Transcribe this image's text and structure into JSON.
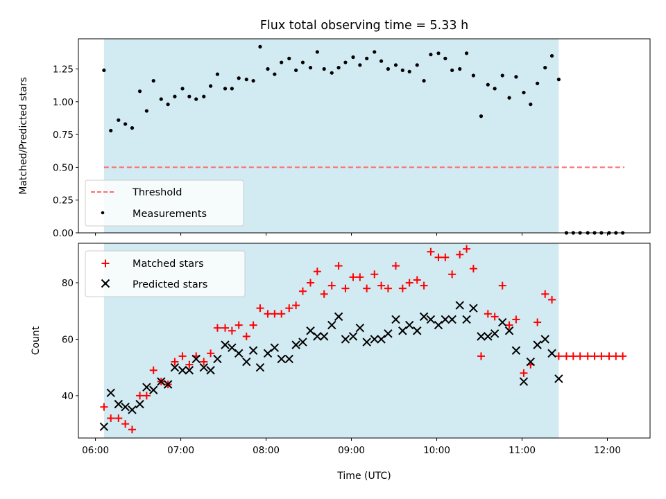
{
  "colors": {
    "observing_band": "#add8e6",
    "threshold": "#ff6b6b",
    "measurements": "#000000",
    "matched": "#ff0000",
    "predicted": "#000000"
  },
  "chart_data": [
    {
      "type": "scatter",
      "panel": "top",
      "title": "Flux total observing time = 5.33 h",
      "xlabel": "",
      "ylabel": "Matched/Predicted stars",
      "xlim_hours": [
        5.8,
        12.5
      ],
      "ylim": [
        0,
        1.48
      ],
      "yticks": [
        0.0,
        0.25,
        0.5,
        0.75,
        1.0,
        1.25
      ],
      "ytick_labels": [
        "0.00",
        "0.25",
        "0.50",
        "0.75",
        "1.00",
        "1.25"
      ],
      "xticks_hours": [
        6,
        7,
        8,
        9,
        10,
        11,
        12
      ],
      "observing_span_hours": [
        6.1,
        11.43
      ],
      "legend": {
        "position": "lower-left",
        "entries": [
          "Threshold",
          "Measurements"
        ]
      },
      "series": [
        {
          "name": "Threshold",
          "style": "dashed-line",
          "x": [
            6.1,
            12.2
          ],
          "y": [
            0.5,
            0.5
          ]
        },
        {
          "name": "Measurements",
          "style": "dot",
          "x": [
            6.1,
            6.18,
            6.27,
            6.35,
            6.43,
            6.52,
            6.6,
            6.68,
            6.77,
            6.85,
            6.93,
            7.02,
            7.1,
            7.18,
            7.27,
            7.35,
            7.43,
            7.52,
            7.6,
            7.68,
            7.77,
            7.85,
            7.93,
            8.02,
            8.1,
            8.18,
            8.27,
            8.35,
            8.43,
            8.52,
            8.6,
            8.68,
            8.77,
            8.85,
            8.93,
            9.02,
            9.1,
            9.18,
            9.27,
            9.35,
            9.43,
            9.52,
            9.6,
            9.68,
            9.77,
            9.85,
            9.93,
            10.02,
            10.1,
            10.18,
            10.27,
            10.35,
            10.43,
            10.52,
            10.6,
            10.68,
            10.77,
            10.85,
            10.93,
            11.02,
            11.1,
            11.18,
            11.27,
            11.35,
            11.43,
            11.52,
            11.6,
            11.68,
            11.77,
            11.85,
            11.93,
            12.02,
            12.1,
            12.18
          ],
          "y": [
            1.24,
            0.78,
            0.86,
            0.83,
            0.8,
            1.08,
            0.93,
            1.16,
            1.02,
            0.98,
            1.04,
            1.1,
            1.04,
            1.02,
            1.04,
            1.12,
            1.21,
            1.1,
            1.1,
            1.18,
            1.17,
            1.16,
            1.42,
            1.25,
            1.21,
            1.3,
            1.33,
            1.24,
            1.3,
            1.26,
            1.38,
            1.25,
            1.22,
            1.26,
            1.3,
            1.34,
            1.28,
            1.33,
            1.38,
            1.31,
            1.25,
            1.28,
            1.24,
            1.23,
            1.28,
            1.16,
            1.36,
            1.37,
            1.33,
            1.24,
            1.25,
            1.37,
            1.2,
            0.89,
            1.13,
            1.1,
            1.2,
            1.03,
            1.19,
            1.07,
            0.98,
            1.14,
            1.26,
            1.35,
            1.17,
            0,
            0,
            0,
            0,
            0,
            0,
            0,
            0,
            0
          ]
        }
      ]
    },
    {
      "type": "scatter",
      "panel": "bottom",
      "title": "",
      "xlabel": "Time (UTC)",
      "ylabel": "Count",
      "xlim_hours": [
        5.8,
        12.5
      ],
      "ylim": [
        25,
        94
      ],
      "yticks": [
        40,
        60,
        80
      ],
      "ytick_labels": [
        "40",
        "60",
        "80"
      ],
      "xticks_hours": [
        6,
        7,
        8,
        9,
        10,
        11,
        12
      ],
      "xtick_labels": [
        "06:00",
        "07:00",
        "08:00",
        "09:00",
        "10:00",
        "11:00",
        "12:00"
      ],
      "observing_span_hours": [
        6.1,
        11.43
      ],
      "legend": {
        "position": "upper-left",
        "entries": [
          "Matched stars",
          "Predicted stars"
        ]
      },
      "series": [
        {
          "name": "Matched stars",
          "marker": "+",
          "x": [
            6.1,
            6.18,
            6.27,
            6.35,
            6.43,
            6.52,
            6.6,
            6.68,
            6.77,
            6.85,
            6.93,
            7.02,
            7.1,
            7.18,
            7.27,
            7.35,
            7.43,
            7.52,
            7.6,
            7.68,
            7.77,
            7.85,
            7.93,
            8.02,
            8.1,
            8.18,
            8.27,
            8.35,
            8.43,
            8.52,
            8.6,
            8.68,
            8.77,
            8.85,
            8.93,
            9.02,
            9.1,
            9.18,
            9.27,
            9.35,
            9.43,
            9.52,
            9.6,
            9.68,
            9.77,
            9.85,
            9.93,
            10.02,
            10.1,
            10.18,
            10.27,
            10.35,
            10.43,
            10.52,
            10.6,
            10.68,
            10.77,
            10.85,
            10.93,
            11.02,
            11.1,
            11.18,
            11.27,
            11.35,
            11.43,
            11.52,
            11.6,
            11.68,
            11.77,
            11.85,
            11.93,
            12.02,
            12.1,
            12.18
          ],
          "y": [
            36,
            32,
            32,
            30,
            28,
            40,
            40,
            49,
            45,
            44,
            52,
            54,
            51,
            54,
            52,
            55,
            64,
            64,
            63,
            65,
            61,
            65,
            71,
            69,
            69,
            69,
            71,
            72,
            77,
            80,
            84,
            76,
            79,
            86,
            78,
            82,
            82,
            78,
            83,
            79,
            78,
            86,
            78,
            80,
            81,
            79,
            91,
            89,
            89,
            83,
            90,
            92,
            85,
            54,
            69,
            68,
            79,
            65,
            67,
            48,
            51,
            66,
            76,
            74,
            54,
            54,
            54,
            54,
            54,
            54,
            54,
            54,
            54,
            54
          ]
        },
        {
          "name": "Predicted stars",
          "marker": "x",
          "x": [
            6.1,
            6.18,
            6.27,
            6.35,
            6.43,
            6.52,
            6.6,
            6.68,
            6.77,
            6.85,
            6.93,
            7.02,
            7.1,
            7.18,
            7.27,
            7.35,
            7.43,
            7.52,
            7.6,
            7.68,
            7.77,
            7.85,
            7.93,
            8.02,
            8.1,
            8.18,
            8.27,
            8.35,
            8.43,
            8.52,
            8.6,
            8.68,
            8.77,
            8.85,
            8.93,
            9.02,
            9.1,
            9.18,
            9.27,
            9.35,
            9.43,
            9.52,
            9.6,
            9.68,
            9.77,
            9.85,
            9.93,
            10.02,
            10.1,
            10.18,
            10.27,
            10.35,
            10.43,
            10.52,
            10.6,
            10.68,
            10.77,
            10.85,
            10.93,
            11.02,
            11.1,
            11.18,
            11.27,
            11.35,
            11.43
          ],
          "y": [
            29,
            41,
            37,
            36,
            35,
            37,
            43,
            42,
            45,
            44,
            50,
            49,
            49,
            53,
            50,
            49,
            53,
            58,
            57,
            55,
            52,
            56,
            50,
            55,
            57,
            53,
            53,
            58,
            59,
            63,
            61,
            61,
            65,
            68,
            60,
            61,
            64,
            59,
            60,
            60,
            62,
            67,
            63,
            65,
            63,
            68,
            67,
            65,
            67,
            67,
            72,
            67,
            71,
            61,
            61,
            62,
            66,
            63,
            56,
            45,
            52,
            58,
            60,
            55,
            46
          ]
        }
      ]
    }
  ]
}
